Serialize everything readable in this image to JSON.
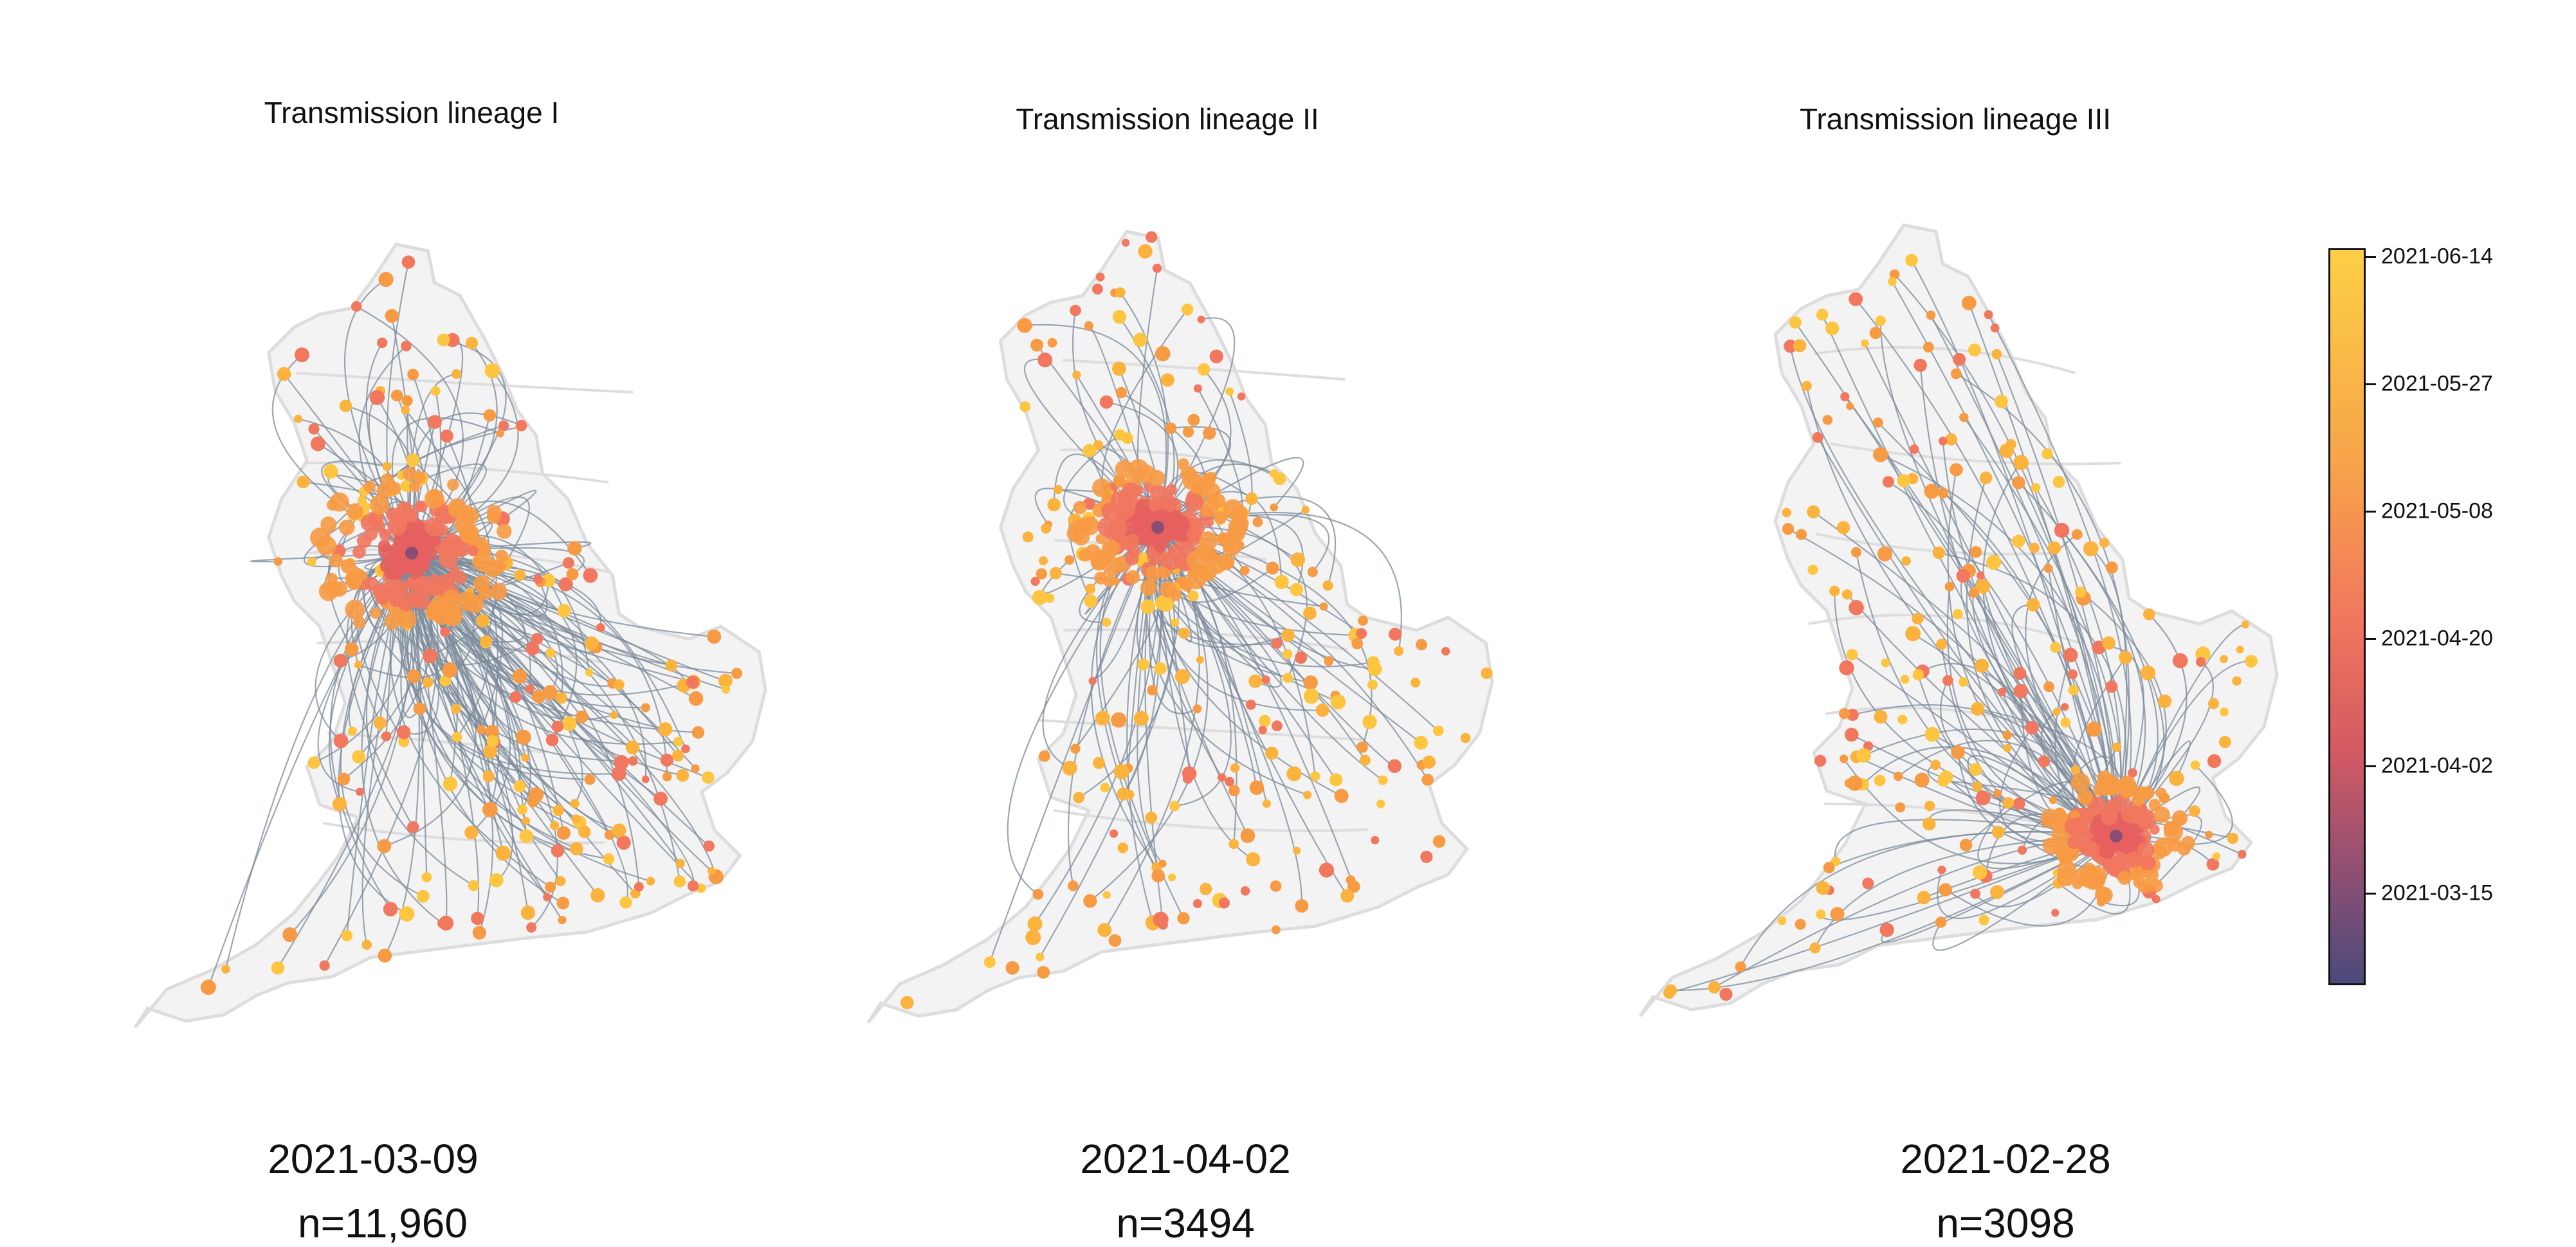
{
  "panels": [
    {
      "title": "Transmission lineage I",
      "date": "2021-03-09",
      "count": "n=11,960"
    },
    {
      "title": "Transmission lineage II",
      "date": "2021-04-02",
      "count": "n=3494"
    },
    {
      "title": "Transmission lineage III",
      "date": "2021-02-28",
      "count": "n=3098"
    }
  ],
  "colorbar": {
    "ticks": [
      "2021-06-14",
      "2021-05-27",
      "2021-05-08",
      "2021-04-20",
      "2021-04-02",
      "2021-03-15"
    ],
    "colors": {
      "low": "#4a4a7c",
      "mid": "#f1775e",
      "high": "#fdcf45"
    }
  },
  "style": {
    "land_fill": "#f3f3f3",
    "border_stroke": "#dddddd",
    "arc_stroke": "#7b8a9a",
    "point_colors": [
      "#fdc540",
      "#fbb33e",
      "#f79a44",
      "#f1775e"
    ]
  }
}
